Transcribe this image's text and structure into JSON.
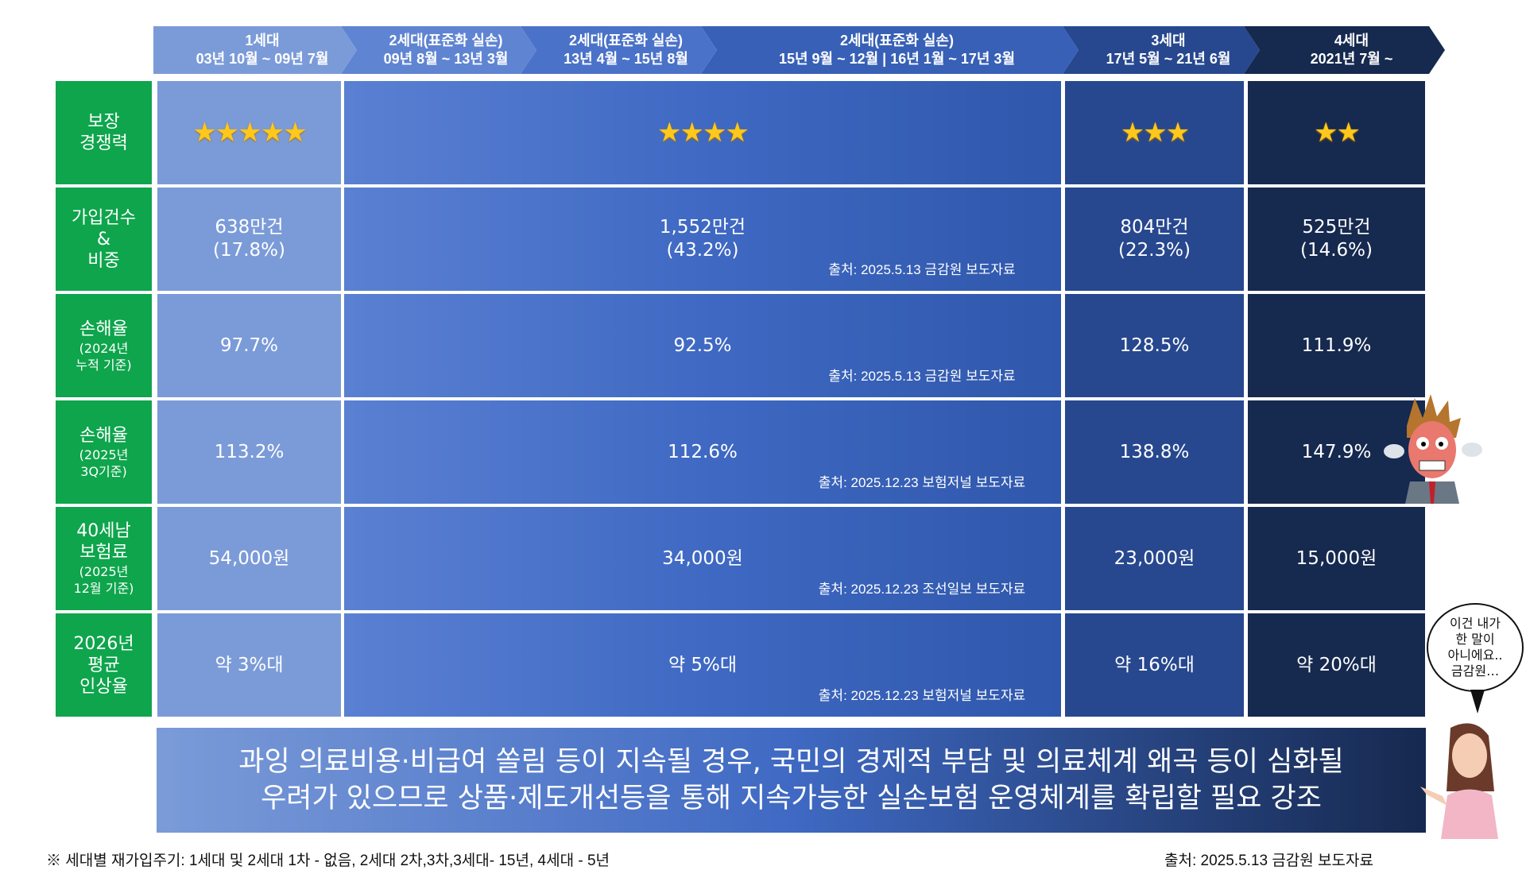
{
  "generations": [
    {
      "name": "1세대",
      "period": "03년 10월 ~ 09년 7월",
      "color": "#7b9bd8"
    },
    {
      "name": "2세대(표준화 실손)",
      "period": "09년 8월 ~ 13년 3월",
      "color": "#5f84d2"
    },
    {
      "name": "2세대(표준화 실손)",
      "period": "13년 4월 ~ 15년 8월",
      "color": "#4a72c8"
    },
    {
      "name": "2세대(표준화 실손)",
      "period": "15년 9월 ~ 12월  |  16년 1월 ~ 17년 3월",
      "color": "#3760b6"
    },
    {
      "name": "3세대",
      "period": "17년 5월 ~ 21년 6월",
      "color": "#27488f"
    },
    {
      "name": "4세대",
      "period": "2021년 7월 ~",
      "color": "#16294f"
    }
  ],
  "rows": [
    {
      "label": [
        "보장",
        "경쟁력"
      ],
      "sub": [],
      "ratings": [
        5,
        4,
        3,
        2
      ]
    },
    {
      "label": [
        "가입건수",
        "&",
        "비중"
      ],
      "sub": [],
      "values": [
        [
          "638만건",
          "(17.8%)"
        ],
        [
          "1,552만건",
          "(43.2%)"
        ],
        [
          "804만건",
          "(22.3%)"
        ],
        [
          "525만건",
          "(14.6%)"
        ]
      ],
      "source": "출처: 2025.5.13 금감원 보도자료"
    },
    {
      "label": [
        "손해율"
      ],
      "sub": [
        "(2024년",
        "누적 기준)"
      ],
      "values": [
        "97.7%",
        "92.5%",
        "128.5%",
        "111.9%"
      ],
      "source": "출처: 2025.5.13 금감원 보도자료"
    },
    {
      "label": [
        "손해율"
      ],
      "sub": [
        "(2025년",
        "3Q기준)"
      ],
      "values": [
        "113.2%",
        "112.6%",
        "138.8%",
        "147.9%"
      ],
      "source": "출처: 2025.12.23 보험저널 보도자료"
    },
    {
      "label": [
        "40세남",
        "보험료"
      ],
      "sub": [
        "(2025년",
        "12월 기준)"
      ],
      "values": [
        "54,000원",
        "34,000원",
        "23,000원",
        "15,000원"
      ],
      "source": "출처: 2025.12.23 조선일보 보도자료"
    },
    {
      "label": [
        "2026년",
        "평균",
        "인상율"
      ],
      "sub": [],
      "values": [
        "약 3%대",
        "약 5%대",
        "약 16%대",
        "약 20%대"
      ],
      "source": "출처: 2025.12.23 보험저널 보도자료"
    }
  ],
  "banner": [
    "과잉 의료비용·비급여 쏠림 등이 지속될 경우, 국민의 경제적 부담 및 의료체계 왜곡 등이 심화될",
    "우려가 있으므로 상품·제도개선등을 통해 지속가능한 실손보험 운영체계를 확립할 필요 강조"
  ],
  "speech_bubble": [
    "이건 내가",
    "한 말이",
    "아니에요..",
    "금감원…"
  ],
  "footnote": "※ 세대별 재가입주기: 1세대 및 2세대 1차 - 없음, 2세대 2차,3차,3세대- 15년, 4세대 - 5년",
  "footer_source": "출처: 2025.5.13 금감원 보도자료",
  "colors": {
    "label_green": "#0ea54c",
    "star": "#ffc81a"
  }
}
